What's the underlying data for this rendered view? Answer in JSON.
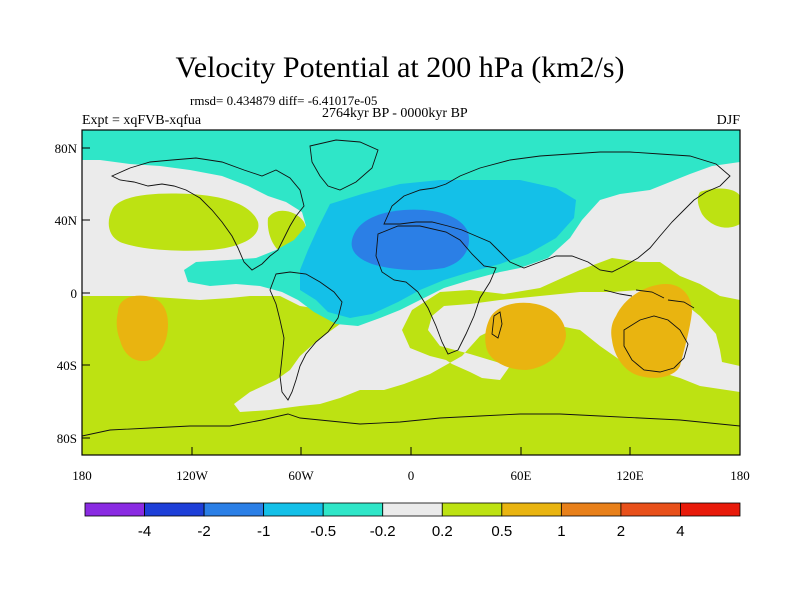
{
  "title": "Velocity Potential at 200 hPa (km2/s)",
  "stats": "rmsd= 0.434879 diff= -6.41017e-05",
  "period": "2764kyr BP - 0000kyr BP",
  "expt": "Expt = xqFVB-xqfua",
  "season": "DJF",
  "axes": {
    "lat_ticks": [
      "80N",
      "40N",
      "0",
      "40S",
      "80S"
    ],
    "lon_ticks": [
      "180",
      "120W",
      "60W",
      "0",
      "60E",
      "120E",
      "180"
    ]
  },
  "colorbar": {
    "labels": [
      "-4",
      "-2",
      "-1",
      "-0.5",
      "-0.2",
      "0.2",
      "0.5",
      "1",
      "2",
      "4"
    ],
    "colors": [
      "#8a2be2",
      "#1e3fd8",
      "#2b7fe6",
      "#14c0e8",
      "#2fe6c8",
      "#ebebeb",
      "#bde212",
      "#e9b410",
      "#e8801a",
      "#e8501a",
      "#e81a0a"
    ]
  },
  "map": {
    "projection": "cylindrical equidistant",
    "lon_range": [
      -180,
      180
    ],
    "lat_range": [
      -90,
      90
    ]
  }
}
